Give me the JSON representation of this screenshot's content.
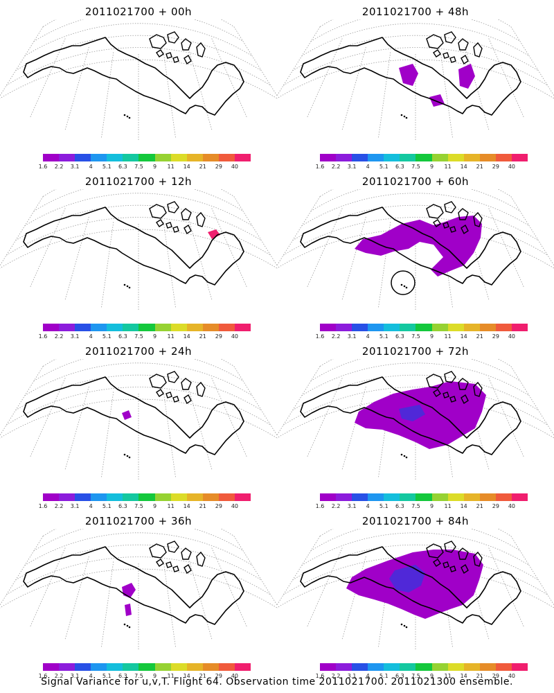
{
  "panels": [
    {
      "title": "2011021700 + 00h",
      "level": 0
    },
    {
      "title": "2011021700 + 48h",
      "level": 4
    },
    {
      "title": "2011021700 + 12h",
      "level": 1
    },
    {
      "title": "2011021700 + 60h",
      "level": 5,
      "circle": true
    },
    {
      "title": "2011021700 + 24h",
      "level": 2
    },
    {
      "title": "2011021700 + 72h",
      "level": 6
    },
    {
      "title": "2011021700 + 36h",
      "level": 3
    },
    {
      "title": "2011021700 + 84h",
      "level": 7
    }
  ],
  "colorbar": {
    "colors": [
      "#a000c8",
      "#8c1cdc",
      "#2850e6",
      "#1e96f0",
      "#14bedc",
      "#14c8a0",
      "#14c83c",
      "#96d232",
      "#dcdc28",
      "#e6b428",
      "#e68c28",
      "#f05a3c",
      "#f01e6e"
    ],
    "labels": [
      "1.6",
      "2.2",
      "3.1",
      "4",
      "5.1",
      "6.3",
      "7.5",
      "9",
      "11",
      "14",
      "21",
      "29",
      "40"
    ]
  },
  "footer": "Signal Variance for u,v,T. Flight 64. Observation time 2011021700. 2011021300 ensemble."
}
